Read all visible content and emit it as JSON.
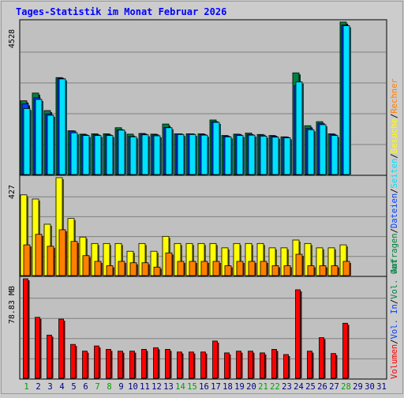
{
  "title": "Tages-Statistik im Monat Februar 2026",
  "colors": {
    "background": "#cccccc",
    "plot_bg": "#c0c0c0",
    "title": "#0000ff",
    "anfragen": "#008040",
    "dateien": "#0040ff",
    "seiten": "#00e0ff",
    "besuche": "#ffff00",
    "rechner": "#ff8000",
    "volumen": "#ff0000",
    "weekday": "#000080",
    "weekend": "#00a000"
  },
  "right_labels": {
    "top": [
      "Anfragen",
      "Dateien",
      "Seiten",
      "Besuche",
      "Rechner"
    ],
    "bottom": [
      "Volumen",
      "Vol. In",
      "Vol. Out"
    ],
    "separator": "/"
  },
  "chart_data": [
    {
      "type": "bar",
      "title": "",
      "ylabel": "4528",
      "ylim": [
        0,
        4528
      ],
      "grid": true,
      "categories": [
        "1",
        "2",
        "3",
        "4",
        "5",
        "6",
        "7",
        "8",
        "9",
        "10",
        "11",
        "12",
        "13",
        "14",
        "15",
        "16",
        "17",
        "18",
        "19",
        "20",
        "21",
        "22",
        "23",
        "24",
        "25",
        "26",
        "27",
        "28",
        "29",
        "30",
        "31"
      ],
      "weekend_days": [
        "1",
        "7",
        "8",
        "14",
        "15",
        "21",
        "22",
        "28"
      ],
      "series": [
        {
          "name": "Anfragen",
          "values": [
            2190,
            2420,
            1900,
            2880,
            1300,
            1200,
            1210,
            1210,
            1390,
            1200,
            1220,
            1200,
            1500,
            1210,
            1210,
            1210,
            1620,
            1160,
            1200,
            1230,
            1190,
            1160,
            1120,
            3020,
            1450,
            1570,
            1210,
            4530,
            null,
            null,
            null
          ]
        },
        {
          "name": "Dateien",
          "values": [
            2100,
            2280,
            1800,
            2860,
            1290,
            1180,
            1180,
            1180,
            1330,
            1130,
            1200,
            1180,
            1400,
            1210,
            1210,
            1190,
            1570,
            1140,
            1190,
            1190,
            1170,
            1140,
            1110,
            2640,
            1370,
            1520,
            1190,
            4440,
            null,
            null,
            null
          ]
        },
        {
          "name": "Seiten",
          "values": [
            1960,
            2230,
            1760,
            2840,
            1240,
            1160,
            1160,
            1160,
            1320,
            1120,
            1180,
            1150,
            1390,
            1190,
            1190,
            1170,
            1550,
            1120,
            1160,
            1170,
            1140,
            1110,
            1090,
            2750,
            1330,
            1480,
            1160,
            4420,
            null,
            null,
            null
          ]
        }
      ]
    },
    {
      "type": "bar",
      "title": "",
      "ylabel": "427",
      "ylim": [
        0,
        427
      ],
      "grid": true,
      "categories": [
        "1",
        "2",
        "3",
        "4",
        "5",
        "6",
        "7",
        "8",
        "9",
        "10",
        "11",
        "12",
        "13",
        "14",
        "15",
        "16",
        "17",
        "18",
        "19",
        "20",
        "21",
        "22",
        "23",
        "24",
        "25",
        "26",
        "27",
        "28",
        "29",
        "30",
        "31"
      ],
      "series": [
        {
          "name": "Besuche",
          "values": [
            352,
            334,
            224,
            427,
            249,
            168,
            140,
            140,
            140,
            106,
            140,
            106,
            171,
            140,
            140,
            140,
            140,
            121,
            140,
            140,
            140,
            121,
            121,
            155,
            140,
            121,
            121,
            134,
            null,
            null,
            null
          ]
        },
        {
          "name": "Rechner",
          "values": [
            134,
            180,
            128,
            200,
            149,
            87,
            62,
            43,
            62,
            56,
            56,
            37,
            99,
            62,
            62,
            62,
            62,
            43,
            62,
            62,
            62,
            43,
            43,
            93,
            43,
            43,
            43,
            62,
            null,
            null,
            null
          ]
        }
      ]
    },
    {
      "type": "bar",
      "title": "",
      "ylabel": "78.83 MB",
      "ylim": [
        0,
        78.83
      ],
      "grid": true,
      "categories": [
        "1",
        "2",
        "3",
        "4",
        "5",
        "6",
        "7",
        "8",
        "9",
        "10",
        "11",
        "12",
        "13",
        "14",
        "15",
        "16",
        "17",
        "18",
        "19",
        "20",
        "21",
        "22",
        "23",
        "24",
        "25",
        "26",
        "27",
        "28",
        "29",
        "30",
        "31"
      ],
      "series": [
        {
          "name": "Volumen",
          "values": [
            78.83,
            48.3,
            34.2,
            46.9,
            26.8,
            21.5,
            25.6,
            22.9,
            21.5,
            21.5,
            22.9,
            24.2,
            22.9,
            20.8,
            20.8,
            20.8,
            29.5,
            20.1,
            21.5,
            21.5,
            20.1,
            22.9,
            18.8,
            70.1,
            21.5,
            32.2,
            19.6,
            43.6,
            null,
            null,
            null
          ]
        }
      ]
    }
  ]
}
